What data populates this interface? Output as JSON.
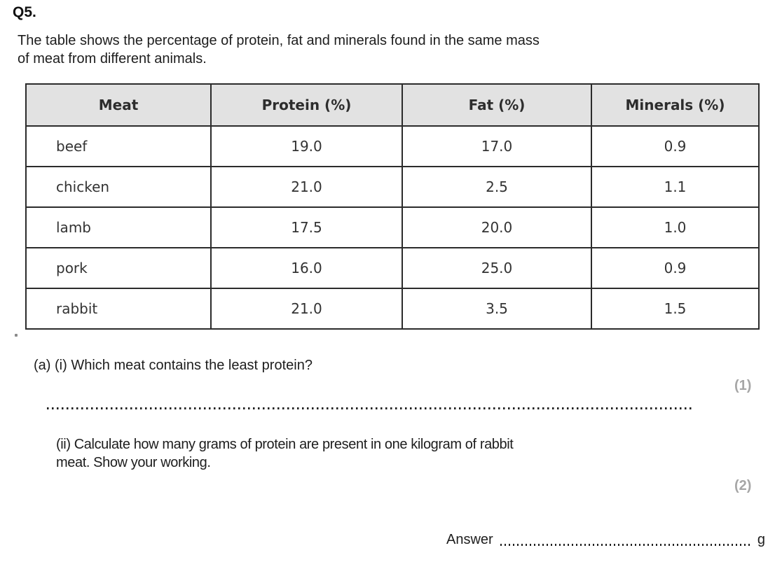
{
  "question": {
    "number": "Q5.",
    "intro_lines": [
      "The table shows the percentage of protein, fat and minerals found in the same mass",
      "of meat from different animals."
    ]
  },
  "table": {
    "headers": [
      "Meat",
      "Protein (%)",
      "Fat (%)",
      "Minerals (%)"
    ],
    "rows": [
      {
        "meat": "beef",
        "protein": "19.0",
        "fat": "17.0",
        "minerals": "0.9"
      },
      {
        "meat": "chicken",
        "protein": "21.0",
        "fat": "2.5",
        "minerals": "1.1"
      },
      {
        "meat": "lamb",
        "protein": "17.5",
        "fat": "20.0",
        "minerals": "1.0"
      },
      {
        "meat": "pork",
        "protein": "16.0",
        "fat": "25.0",
        "minerals": "0.9"
      },
      {
        "meat": "rabbit",
        "protein": "21.0",
        "fat": "3.5",
        "minerals": "1.5"
      }
    ]
  },
  "parts": {
    "a_i": {
      "text": "(a) (i) Which meat contains the least protein?",
      "marks": "(1)"
    },
    "a_ii": {
      "lines": [
        "(ii) Calculate how many grams of protein are present in one kilogram of rabbit",
        "meat. Show your working."
      ],
      "marks": "(2)"
    },
    "answer": {
      "label": "Answer",
      "unit": "g"
    }
  },
  "colors": {
    "header_bg": "#e2e2e2",
    "table_border": "#2b2b2b",
    "marks_gray": "#a6a6a6",
    "text": "#1d1d1d"
  }
}
